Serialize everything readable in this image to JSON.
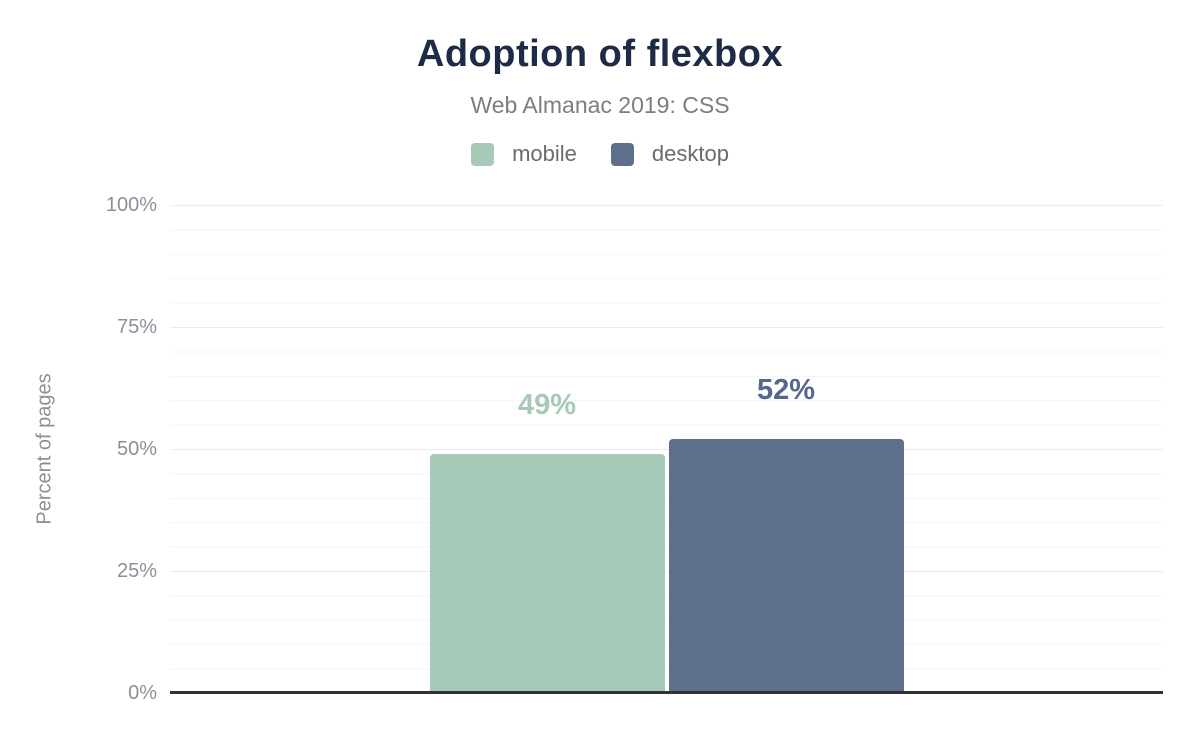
{
  "chart_data": {
    "type": "bar",
    "title": "Adoption of flexbox",
    "subtitle": "Web Almanac 2019: CSS",
    "ylabel": "Percent of pages",
    "ylim": [
      0,
      100
    ],
    "yticks": [
      "0%",
      "25%",
      "50%",
      "75%",
      "100%"
    ],
    "grid": "major every 25%, minor every 5%, horizontal only",
    "legend_position": "top center",
    "series": [
      {
        "name": "mobile",
        "value": 49,
        "label": "49%",
        "color": "#a7c9b8",
        "label_color": "#a7c9b8"
      },
      {
        "name": "desktop",
        "value": 52,
        "label": "52%",
        "color": "#5d6f8b",
        "label_color": "#55678a"
      }
    ],
    "colors": {
      "title": "#1e2b47",
      "subtitle": "#7d7d7d",
      "tick_labels": "#8b9099",
      "axis_line": "#313131",
      "background": "#ffffff"
    }
  }
}
